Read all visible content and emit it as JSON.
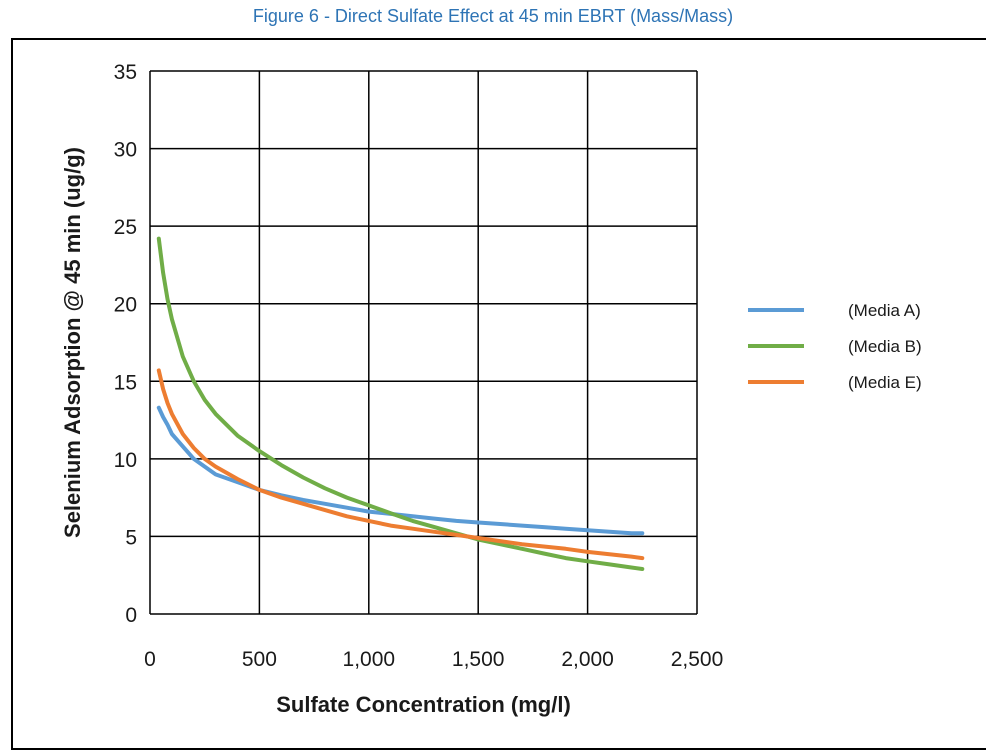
{
  "caption": "Figure 6 - Direct Sulfate Effect at 45 min EBRT (Mass/Mass)",
  "chart_data": {
    "type": "line",
    "title": "",
    "xlabel": "Sulfate Concentration (mg/l)",
    "ylabel": "Selenium Adsorption @ 45 min (ug/g)",
    "xlim": [
      0,
      2500
    ],
    "ylim": [
      0,
      35
    ],
    "x_ticks": [
      "0",
      "500",
      "1,000",
      "1,500",
      "2,000",
      "2,500"
    ],
    "y_ticks": [
      "0",
      "5",
      "10",
      "15",
      "20",
      "25",
      "30",
      "35"
    ],
    "grid": true,
    "legend_position": "right",
    "series": [
      {
        "name": "(Media A)",
        "color": "#5b9bd5",
        "x": [
          40,
          60,
          80,
          100,
          150,
          200,
          250,
          300,
          400,
          500,
          600,
          700,
          800,
          900,
          1000,
          1100,
          1200,
          1300,
          1400,
          1500,
          1600,
          1700,
          1800,
          1900,
          2000,
          2100,
          2200,
          2250
        ],
        "y": [
          13.3,
          12.7,
          12.2,
          11.6,
          10.8,
          10.0,
          9.5,
          9.0,
          8.5,
          8.0,
          7.65,
          7.35,
          7.1,
          6.85,
          6.6,
          6.45,
          6.3,
          6.15,
          6.0,
          5.9,
          5.8,
          5.7,
          5.6,
          5.5,
          5.4,
          5.3,
          5.2,
          5.2
        ]
      },
      {
        "name": "(Media B)",
        "color": "#70ad47",
        "x": [
          40,
          60,
          80,
          100,
          150,
          200,
          250,
          300,
          400,
          500,
          600,
          700,
          800,
          900,
          1000,
          1100,
          1200,
          1300,
          1400,
          1500,
          1600,
          1700,
          1800,
          1900,
          2000,
          2100,
          2200,
          2250
        ],
        "y": [
          24.2,
          22.0,
          20.3,
          19.0,
          16.6,
          15.0,
          13.8,
          12.9,
          11.5,
          10.5,
          9.6,
          8.8,
          8.1,
          7.5,
          7.0,
          6.5,
          6.0,
          5.6,
          5.2,
          4.8,
          4.5,
          4.2,
          3.9,
          3.6,
          3.4,
          3.2,
          3.0,
          2.9
        ]
      },
      {
        "name": "(Media E)",
        "color": "#ed7d31",
        "x": [
          40,
          60,
          80,
          100,
          150,
          200,
          250,
          300,
          400,
          500,
          600,
          700,
          800,
          900,
          1000,
          1100,
          1200,
          1300,
          1400,
          1500,
          1600,
          1700,
          1800,
          1900,
          2000,
          2100,
          2200,
          2250
        ],
        "y": [
          15.7,
          14.5,
          13.6,
          12.9,
          11.6,
          10.7,
          10.0,
          9.5,
          8.7,
          8.0,
          7.5,
          7.1,
          6.7,
          6.3,
          6.0,
          5.7,
          5.5,
          5.3,
          5.1,
          4.9,
          4.7,
          4.5,
          4.35,
          4.2,
          4.0,
          3.85,
          3.7,
          3.6
        ]
      }
    ]
  }
}
